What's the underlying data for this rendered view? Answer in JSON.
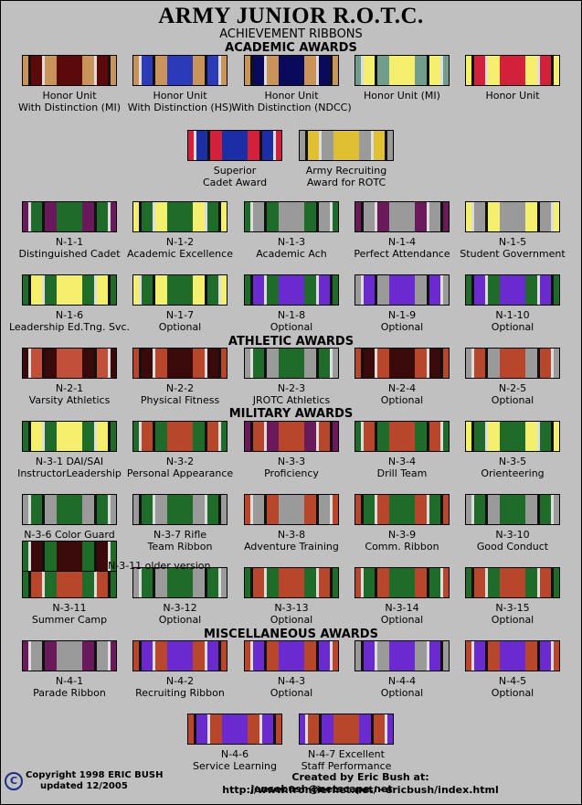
{
  "title": "ARMY JUNIOR R.O.T.C.",
  "subtitle": "ACHIEVEMENT RIBBONS",
  "sections": {
    "academic": "ACADEMIC AWARDS",
    "athletic": "ATHLETIC AWARDS",
    "military": "MILITARY AWARDS",
    "misc": "MISCELLANEOUS AWARDS"
  },
  "ribbons": [
    {
      "line1": "Honor Unit",
      "line2": "With Distinction (MI)",
      "colors": [
        "#c8945a",
        "#5a0a0a"
      ]
    },
    {
      "line1": "Honor Unit",
      "line2": "With Distinction (HS)",
      "colors": [
        "#c8945a",
        "#2a3ab8"
      ]
    },
    {
      "line1": "Honor Unit",
      "line2": "With Distinction (NDCC)",
      "colors": [
        "#c8945a",
        "#0a0a5a"
      ]
    },
    {
      "line1": "Honor Unit (MI)",
      "line2": "",
      "colors": [
        "#6f9d8a",
        "#f5ef6e"
      ]
    },
    {
      "line1": "Honor Unit",
      "line2": "",
      "colors": [
        "#f5ef6e",
        "#d4213b"
      ]
    },
    {
      "line1": "Superior",
      "line2": "Cadet Award",
      "colors": [
        "#d4213b",
        "#1c2ea6"
      ]
    },
    {
      "line1": "Army Recruiting",
      "line2": "Award for ROTC",
      "colors": [
        "#9a9a9a",
        "#e0c030"
      ]
    },
    {
      "line1": "N-1-1",
      "line2": "Distinguished Cadet",
      "colors": [
        "#6a1a5a",
        "#1f6b2a"
      ]
    },
    {
      "line1": "N-1-2",
      "line2": "Academic Excellence",
      "colors": [
        "#f5ef6e",
        "#1f6b2a"
      ]
    },
    {
      "line1": "N-1-3",
      "line2": "Academic Ach",
      "colors": [
        "#1f6b2a",
        "#9a9a9a"
      ]
    },
    {
      "line1": "N-1-4",
      "line2": "Perfect Attendance",
      "colors": [
        "#6a1a5a",
        "#9a9a9a"
      ]
    },
    {
      "line1": "N-1-5",
      "line2": "Student Government",
      "colors": [
        "#f5ef6e",
        "#9a9a9a"
      ]
    },
    {
      "line1": "N-1-6",
      "line2": "Leadership Ed.Tng. Svc.",
      "colors": [
        "#1f6b2a",
        "#f5ef6e"
      ]
    },
    {
      "line1": "N-1-7",
      "line2": "Optional",
      "colors": [
        "#f5ef6e",
        "#1f6b2a"
      ]
    },
    {
      "line1": "N-1-8",
      "line2": "Optional",
      "colors": [
        "#1f6b2a",
        "#6a2ad0"
      ]
    },
    {
      "line1": "N-1-9",
      "line2": "Optional",
      "colors": [
        "#9a9a9a",
        "#6a2ad0"
      ]
    },
    {
      "line1": "N-1-10",
      "line2": "Optional",
      "colors": [
        "#1f6b2a",
        "#6a2ad0"
      ]
    },
    {
      "line1": "N-2-1",
      "line2": "Varsity Athletics",
      "colors": [
        "#3a0a0a",
        "#c0503a"
      ]
    },
    {
      "line1": "N-2-2",
      "line2": "Physical Fitness",
      "colors": [
        "#b8462a",
        "#3a0a0a"
      ]
    },
    {
      "line1": "N-2-3",
      "line2": "JROTC Athletics",
      "colors": [
        "#9a9a9a",
        "#1f6b2a"
      ]
    },
    {
      "line1": "N-2-4",
      "line2": "Optional",
      "colors": [
        "#b8462a",
        "#3a0a0a"
      ]
    },
    {
      "line1": "N-2-5",
      "line2": "Optional",
      "colors": [
        "#9a9a9a",
        "#b8462a"
      ]
    },
    {
      "line1": "N-3-1 DAI/SAI",
      "line2": "InstructorLeadership",
      "colors": [
        "#1f6b2a",
        "#f5ef6e"
      ]
    },
    {
      "line1": "N-3-2",
      "line2": "Personal Appearance",
      "colors": [
        "#1f6b2a",
        "#b8462a"
      ]
    },
    {
      "line1": "N-3-3",
      "line2": "Proficiency",
      "colors": [
        "#6a1a5a",
        "#b8462a"
      ]
    },
    {
      "line1": "N-3-4",
      "line2": "Drill Team",
      "colors": [
        "#1f6b2a",
        "#b8462a"
      ]
    },
    {
      "line1": "N-3-5",
      "line2": "Orienteering",
      "colors": [
        "#f5ef6e",
        "#1f6b2a"
      ]
    },
    {
      "line1": "N-3-6 Color Guard",
      "line2": "",
      "colors": [
        "#9a9a9a",
        "#1f6b2a"
      ]
    },
    {
      "line1": "N-3-7  Rifle",
      "line2": "Team Ribbon",
      "colors": [
        "#9a9a9a",
        "#1f6b2a"
      ]
    },
    {
      "line1": "N-3-8",
      "line2": "Adventure Training",
      "colors": [
        "#b8462a",
        "#9a9a9a"
      ]
    },
    {
      "line1": "N-3-9",
      "line2": "Comm. Ribbon",
      "colors": [
        "#b8462a",
        "#1f6b2a"
      ]
    },
    {
      "line1": "N-3-10",
      "line2": "Good Conduct",
      "colors": [
        "#9a9a9a",
        "#1f6b2a"
      ]
    },
    {
      "line1": "N-3-11",
      "line2": "Summer Camp",
      "colors": [
        "#1f6b2a",
        "#b8462a"
      ]
    },
    {
      "line1": "N-3-12",
      "line2": "Optional",
      "colors": [
        "#9a9a9a",
        "#1f6b2a"
      ]
    },
    {
      "line1": "N-3-13",
      "line2": "Optional",
      "colors": [
        "#1f6b2a",
        "#b8462a"
      ]
    },
    {
      "line1": "N-3-14",
      "line2": "Optional",
      "colors": [
        "#b8462a",
        "#1f6b2a"
      ]
    },
    {
      "line1": "N-3-15",
      "line2": "Optional",
      "colors": [
        "#1f6b2a",
        "#b8462a"
      ]
    },
    {
      "line1": "N-4-1",
      "line2": "Parade Ribbon",
      "colors": [
        "#6a1a5a",
        "#9a9a9a"
      ]
    },
    {
      "line1": "N-4-2",
      "line2": "Recruiting Ribbon",
      "colors": [
        "#b8462a",
        "#6a2ad0"
      ]
    },
    {
      "line1": "N-4-3",
      "line2": "Optional",
      "colors": [
        "#b8462a",
        "#6a2ad0"
      ]
    },
    {
      "line1": "N-4-4",
      "line2": "Optional",
      "colors": [
        "#9a9a9a",
        "#6a2ad0"
      ]
    },
    {
      "line1": "N-4-5",
      "line2": "Optional",
      "colors": [
        "#b8462a",
        "#6a2ad0"
      ]
    },
    {
      "line1": "N-4-6",
      "line2": "Service Learning",
      "colors": [
        "#b8462a",
        "#6a2ad0"
      ]
    },
    {
      "line1": "N-4-7 Excellent",
      "line2": "Staff Performance",
      "colors": [
        "#6a2ad0",
        "#b8462a"
      ]
    }
  ],
  "older_version_label": "N-3-11 older version",
  "footer": {
    "copyright_line1": "Copyright 1998  ERIC BUSH",
    "copyright_line2": "updated 12/2005",
    "created_by": "Created by Eric Bush at: http://www.frontiernet.net/~ericbush/index.html",
    "email": "jensebush@netscape.net",
    "copyright_symbol": "C"
  }
}
